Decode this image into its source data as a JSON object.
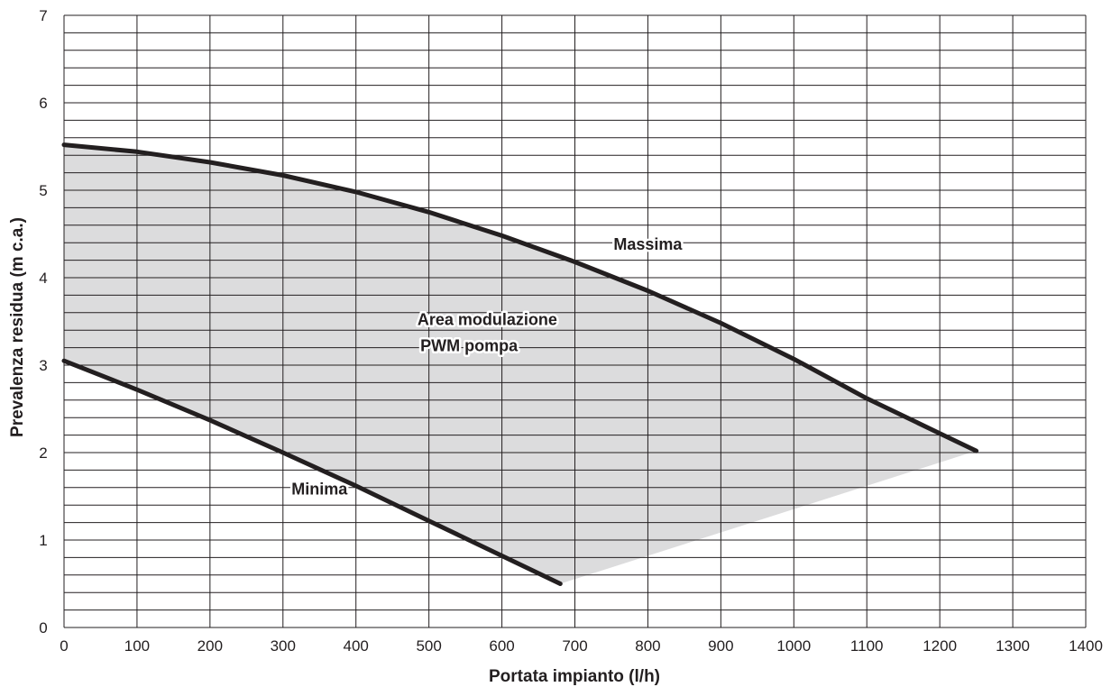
{
  "chart_data": {
    "type": "line",
    "xlabel": "Portata impianto (l/h)",
    "ylabel": "Prevalenza residua (m c.a.)",
    "xlim": [
      0,
      1400
    ],
    "ylim": [
      0,
      7
    ],
    "x_ticks": [
      "0",
      "100",
      "200",
      "300",
      "400",
      "500",
      "600",
      "700",
      "800",
      "900",
      "1000",
      "1100",
      "1200",
      "1300",
      "1400"
    ],
    "y_ticks": [
      "0",
      "1",
      "2",
      "3",
      "4",
      "5",
      "6",
      "7"
    ],
    "grid": true,
    "series": [
      {
        "name": "Massima",
        "x": [
          0,
          100,
          200,
          300,
          400,
          500,
          600,
          700,
          800,
          900,
          1000,
          1100,
          1200,
          1250
        ],
        "y": [
          5.52,
          5.44,
          5.32,
          5.17,
          4.98,
          4.75,
          4.48,
          4.18,
          3.85,
          3.48,
          3.07,
          2.62,
          2.22,
          2.02
        ]
      },
      {
        "name": "Minima",
        "x": [
          0,
          100,
          200,
          300,
          400,
          500,
          600,
          680
        ],
        "y": [
          3.05,
          2.72,
          2.37,
          2.0,
          1.62,
          1.22,
          0.82,
          0.5
        ]
      }
    ],
    "annotations": [
      {
        "text": "Massima",
        "x": 800,
        "y": 4.38
      },
      {
        "text": "Minima",
        "x": 350,
        "y": 1.58
      },
      {
        "text": "Area modulazione",
        "x": 580,
        "y": 3.52
      },
      {
        "text": "PWM pompa",
        "x": 555,
        "y": 3.22
      }
    ],
    "fill": {
      "between": [
        "Massima",
        "Minima"
      ],
      "color": "#dcdcdd"
    },
    "colors": {
      "line": "#231f20",
      "grid": "#231f20",
      "fill": "#dcdcdd"
    }
  }
}
